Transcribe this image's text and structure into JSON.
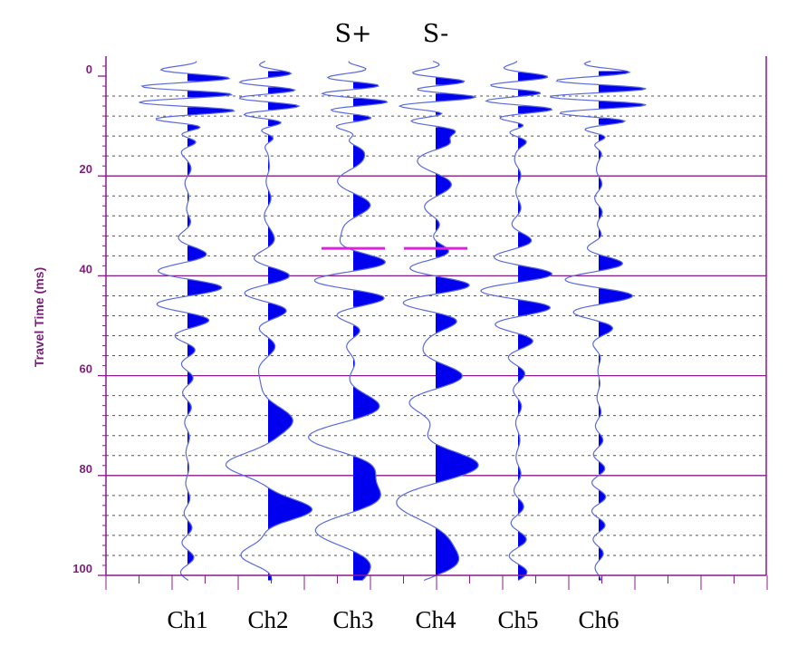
{
  "chart_data": {
    "type": "line",
    "title": "",
    "ylabel": "Travel Time (ms)",
    "xlabel": "",
    "ylim": [
      0,
      100
    ],
    "y_inverted": true,
    "major_ticks": [
      0,
      20,
      40,
      60,
      80,
      100
    ],
    "minor_grid_step_ms": 4,
    "grid": true,
    "channels": [
      "Ch1",
      "Ch2",
      "Ch3",
      "Ch4",
      "Ch5",
      "Ch6"
    ],
    "annotations": [
      {
        "text": "S+",
        "channel": "Ch3"
      },
      {
        "text": "S-",
        "channel": "Ch4"
      }
    ],
    "marker_lines": [
      {
        "channel": "Ch3",
        "time_ms": 34.5
      },
      {
        "channel": "Ch4",
        "time_ms": 34.5
      }
    ],
    "colors": {
      "trace": "#5a6adf",
      "fill": "#0000ee",
      "major_grid": "#8b1a8b",
      "minor_grid": "#555555",
      "marker": "#e020e0",
      "axis_label": "#7a1f7a"
    }
  }
}
